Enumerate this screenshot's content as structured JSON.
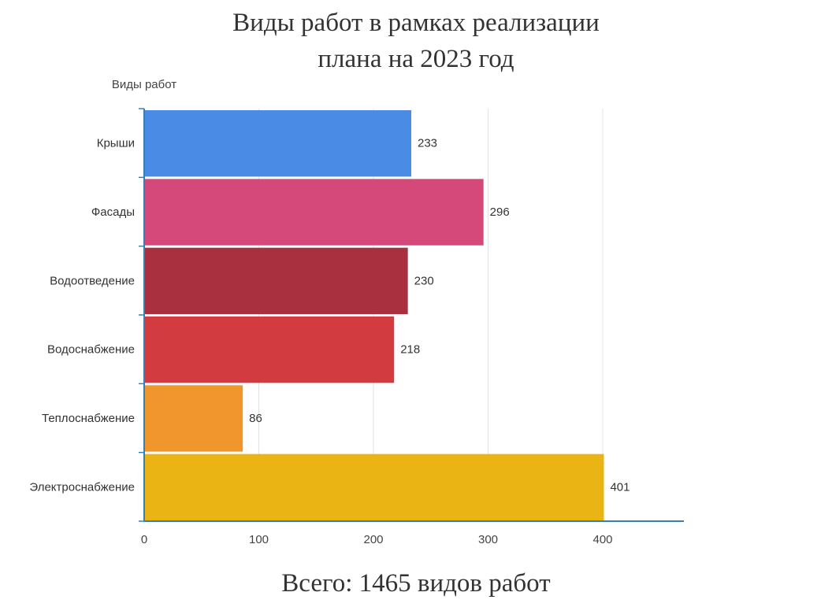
{
  "chart_data": {
    "type": "bar",
    "orientation": "horizontal",
    "title_line1": "Виды работ в рамках реализации",
    "title_line2": "плана на 2023 год",
    "ylabel": "Виды работ",
    "categories": [
      "Крыши",
      "Фасады",
      "Водоотведение",
      "Водоснабжение",
      "Теплоснабжение",
      "Электроснабжение"
    ],
    "values": [
      233,
      296,
      230,
      218,
      86,
      401
    ],
    "colors": [
      "#4a8be6",
      "#d4497a",
      "#a9303f",
      "#d23b40",
      "#f0962c",
      "#eab514"
    ],
    "xticks": [
      "0",
      "100",
      "200",
      "300",
      "400"
    ],
    "xlim": [
      0,
      470
    ],
    "grid": true,
    "data_labels": true
  },
  "footer": "Всего: 1465 видов работ"
}
